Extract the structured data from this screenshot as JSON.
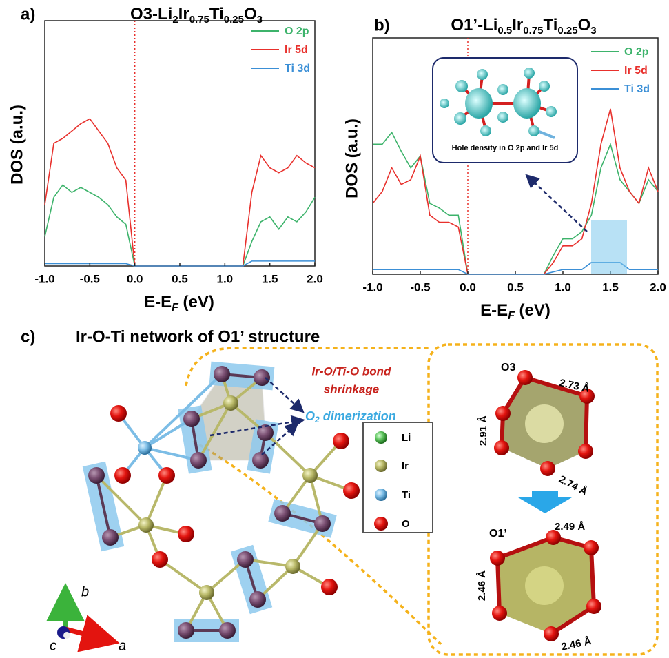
{
  "chart_data": [
    {
      "type": "line",
      "panel_label": "a)",
      "title": [
        "O3-Li",
        "2",
        "Ir",
        "0.75",
        "Ti",
        "0.25",
        "O",
        "3"
      ],
      "x_label": [
        "E-E",
        "F",
        " (eV)"
      ],
      "y_label": "DOS (a.u.)",
      "fermi_level": 0,
      "x": [
        -1,
        -0.9,
        -0.8,
        -0.7,
        -0.6,
        -0.5,
        -0.4,
        -0.3,
        -0.2,
        -0.1,
        0,
        0.1,
        0.2,
        0.3,
        0.4,
        0.5,
        0.6,
        0.7,
        0.8,
        0.9,
        1,
        1.1,
        1.2,
        1.3,
        1.4,
        1.5,
        1.6,
        1.7,
        1.8,
        1.9,
        2
      ],
      "series": [
        {
          "name": "O 2p",
          "color": "#3db36b",
          "values": [
            12,
            28,
            33,
            30,
            32,
            30,
            28,
            25,
            20,
            17,
            0,
            0,
            0,
            0,
            0,
            0,
            0,
            0,
            0,
            0,
            0,
            0,
            0,
            10,
            18,
            20,
            15,
            20,
            18,
            22,
            28
          ]
        },
        {
          "name": "Ir 5d",
          "color": "#e8302c",
          "values": [
            25,
            50,
            52,
            55,
            58,
            60,
            55,
            50,
            40,
            35,
            0,
            0,
            0,
            0,
            0,
            0,
            0,
            0,
            0,
            0,
            0,
            0,
            0,
            30,
            45,
            40,
            38,
            40,
            45,
            42,
            40
          ]
        },
        {
          "name": "Ti 3d",
          "color": "#3b8fd6",
          "values": [
            1,
            1,
            1,
            1,
            1,
            1,
            1,
            1,
            1,
            1,
            0,
            0,
            0,
            0,
            0,
            0,
            0,
            0,
            0,
            0,
            0,
            0,
            0,
            2,
            2,
            2,
            2,
            2,
            2,
            2,
            2
          ]
        }
      ],
      "xlim": [
        -1,
        2
      ],
      "ylim": [
        0,
        100
      ],
      "xticks": [
        {
          "value": -1,
          "label": "-1.0"
        },
        -0.5,
        {
          "value": 0,
          "label": "0.0"
        },
        0.5,
        {
          "value": 1,
          "label": "1.0"
        },
        1.5,
        {
          "value": 2,
          "label": "2.0"
        }
      ]
    },
    {
      "type": "line",
      "panel_label": "b)",
      "title": [
        "O1’-Li",
        "0.5",
        "Ir",
        "0.75",
        "Ti",
        "0.25",
        "O",
        "3"
      ],
      "x_label": [
        "E-E",
        "F",
        " (eV)"
      ],
      "y_label": "DOS (a.u.)",
      "fermi_level": 0,
      "inset_caption": "Hole density in O 2p and Ir 5d",
      "x": [
        -1,
        -0.9,
        -0.8,
        -0.7,
        -0.6,
        -0.5,
        -0.4,
        -0.3,
        -0.2,
        -0.1,
        0,
        0.1,
        0.2,
        0.3,
        0.4,
        0.5,
        0.6,
        0.7,
        0.8,
        0.9,
        1,
        1.1,
        1.2,
        1.3,
        1.4,
        1.5,
        1.6,
        1.7,
        1.8,
        1.9,
        2
      ],
      "series": [
        {
          "name": "O 2p",
          "color": "#3db36b",
          "values": [
            55,
            55,
            60,
            52,
            45,
            50,
            30,
            28,
            25,
            25,
            0,
            0,
            0,
            0,
            0,
            0,
            0,
            0,
            0,
            8,
            15,
            15,
            18,
            25,
            45,
            55,
            40,
            35,
            30,
            40,
            35
          ]
        },
        {
          "name": "Ir 5d",
          "color": "#e8302c",
          "values": [
            30,
            35,
            45,
            38,
            40,
            50,
            25,
            22,
            22,
            20,
            0,
            0,
            0,
            0,
            0,
            0,
            0,
            0,
            0,
            5,
            12,
            12,
            15,
            30,
            55,
            70,
            45,
            35,
            30,
            45,
            35
          ]
        },
        {
          "name": "Ti 3d",
          "color": "#3b8fd6",
          "values": [
            2,
            2,
            2,
            2,
            2,
            2,
            2,
            2,
            2,
            2,
            0,
            0,
            0,
            0,
            0,
            0,
            0,
            0,
            0,
            1,
            2,
            2,
            2,
            5,
            5,
            5,
            5,
            2,
            2,
            2,
            2
          ]
        }
      ],
      "xlim": [
        -1,
        2
      ],
      "ylim": [
        0,
        100
      ],
      "xticks": [
        {
          "value": -1,
          "label": "-1.0"
        },
        -0.5,
        {
          "value": 0,
          "label": "0.0"
        },
        0.5,
        {
          "value": 1,
          "label": "1.0"
        },
        1.5,
        {
          "value": 2,
          "label": "2.0"
        }
      ]
    }
  ],
  "diagram": {
    "panel_label": "c)",
    "title": "Ir-O-Ti network of O1’ structure",
    "shrinkage": [
      "Ir-O/Ti-O bond",
      "shrinkage"
    ],
    "dimerization": [
      "O",
      "2",
      " dimerization"
    ],
    "legend": [
      "Li",
      "Ir",
      "Ti",
      "O"
    ],
    "axes": [
      "b",
      "a",
      "c"
    ],
    "o3": {
      "label": "O3",
      "distances": [
        "2.73 Å",
        "2.91 Å",
        "2.74 Å"
      ]
    },
    "o1": {
      "label": "O1’",
      "distances": [
        "2.49 Å",
        "2.46 Å",
        "2.46 Å"
      ]
    }
  }
}
